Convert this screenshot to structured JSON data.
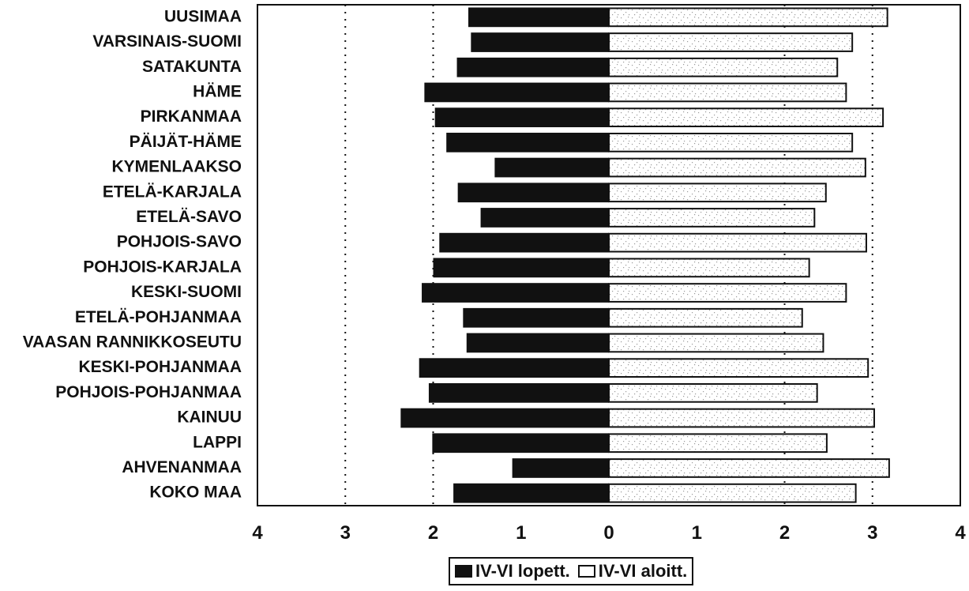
{
  "chart_data": {
    "type": "bar",
    "orientation": "horizontal-diverging",
    "categories": [
      "UUSIMAA",
      "VARSINAIS-SUOMI",
      "SATAKUNTA",
      "HÄME",
      "PIRKANMAA",
      "PÄIJÄT-HÄME",
      "KYMENLAAKSO",
      "ETELÄ-KARJALA",
      "ETELÄ-SAVO",
      "POHJOIS-SAVO",
      "POHJOIS-KARJALA",
      "KESKI-SUOMI",
      "ETELÄ-POHJANMAA",
      "VAASAN RANNIKKOSEUTU",
      "KESKI-POHJANMAA",
      "POHJOIS-POHJANMAA",
      "KAINUU",
      "LAPPI",
      "AHVENANMAA",
      "KOKO MAA"
    ],
    "series": [
      {
        "name": "IV-VI lopett.",
        "side": "left",
        "color": "#111111",
        "values": [
          1.6,
          1.57,
          1.73,
          2.1,
          1.98,
          1.85,
          1.3,
          1.72,
          1.46,
          1.93,
          2.0,
          2.13,
          1.66,
          1.62,
          2.16,
          2.05,
          2.37,
          2.01,
          1.1,
          1.77
        ]
      },
      {
        "name": "IV-VI aloitt.",
        "side": "right",
        "color": "#ffffff",
        "values": [
          3.17,
          2.77,
          2.6,
          2.7,
          3.12,
          2.77,
          2.92,
          2.47,
          2.34,
          2.93,
          2.28,
          2.7,
          2.2,
          2.44,
          2.95,
          2.37,
          3.02,
          2.48,
          3.19,
          2.81
        ]
      }
    ],
    "xlim": [
      -4,
      4
    ],
    "xticks": [
      "4",
      "3",
      "2",
      "1",
      "0",
      "1",
      "2",
      "3",
      "4"
    ],
    "gridlines": "dotted at 2 and 3 on both sides",
    "legend_position": "bottom-center",
    "title": "",
    "xlabel": "",
    "ylabel": ""
  }
}
